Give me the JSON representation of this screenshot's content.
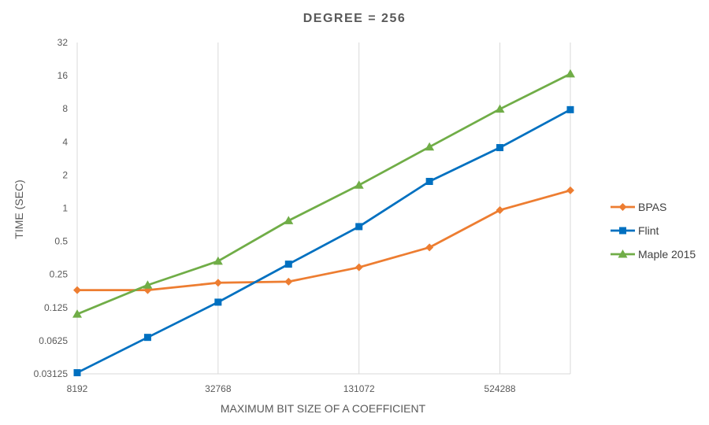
{
  "chart_data": {
    "type": "line",
    "title": "DEGREE = 256",
    "xlabel": "MAXIMUM BIT SIZE  OF A COEFFICIENT",
    "ylabel": "TIME (SEC)",
    "x_scale": "log2",
    "y_scale": "log2",
    "x": [
      8192,
      16384,
      32768,
      65536,
      131072,
      262144,
      524288,
      1048576
    ],
    "xlim": [
      8192,
      1048576
    ],
    "ylim": [
      0.03125,
      32
    ],
    "x_ticks": [
      8192,
      32768,
      131072,
      524288
    ],
    "x_tick_labels": [
      "8192",
      "32768",
      "131072",
      "524288"
    ],
    "y_ticks": [
      0.03125,
      0.0625,
      0.125,
      0.25,
      0.5,
      1,
      2,
      4,
      8,
      16,
      32
    ],
    "y_tick_labels": [
      "0.03125",
      "0.0625",
      "0.125",
      "0.25",
      "0.5",
      "1",
      "2",
      "4",
      "8",
      "16",
      "32"
    ],
    "grid": "vertical",
    "legend_position": "right",
    "series": [
      {
        "name": "BPAS",
        "color": "#ED7D31",
        "marker": "diamond",
        "values": [
          0.18,
          0.18,
          0.21,
          0.215,
          0.29,
          0.44,
          0.96,
          1.45
        ]
      },
      {
        "name": "Flint",
        "color": "#0070C0",
        "marker": "square",
        "values": [
          0.032,
          0.067,
          0.14,
          0.31,
          0.68,
          1.75,
          3.55,
          7.85
        ]
      },
      {
        "name": "Maple 2015",
        "color": "#70AD47",
        "marker": "triangle",
        "values": [
          0.109,
          0.2,
          0.33,
          0.77,
          1.62,
          3.6,
          7.95,
          16.6
        ]
      }
    ]
  }
}
